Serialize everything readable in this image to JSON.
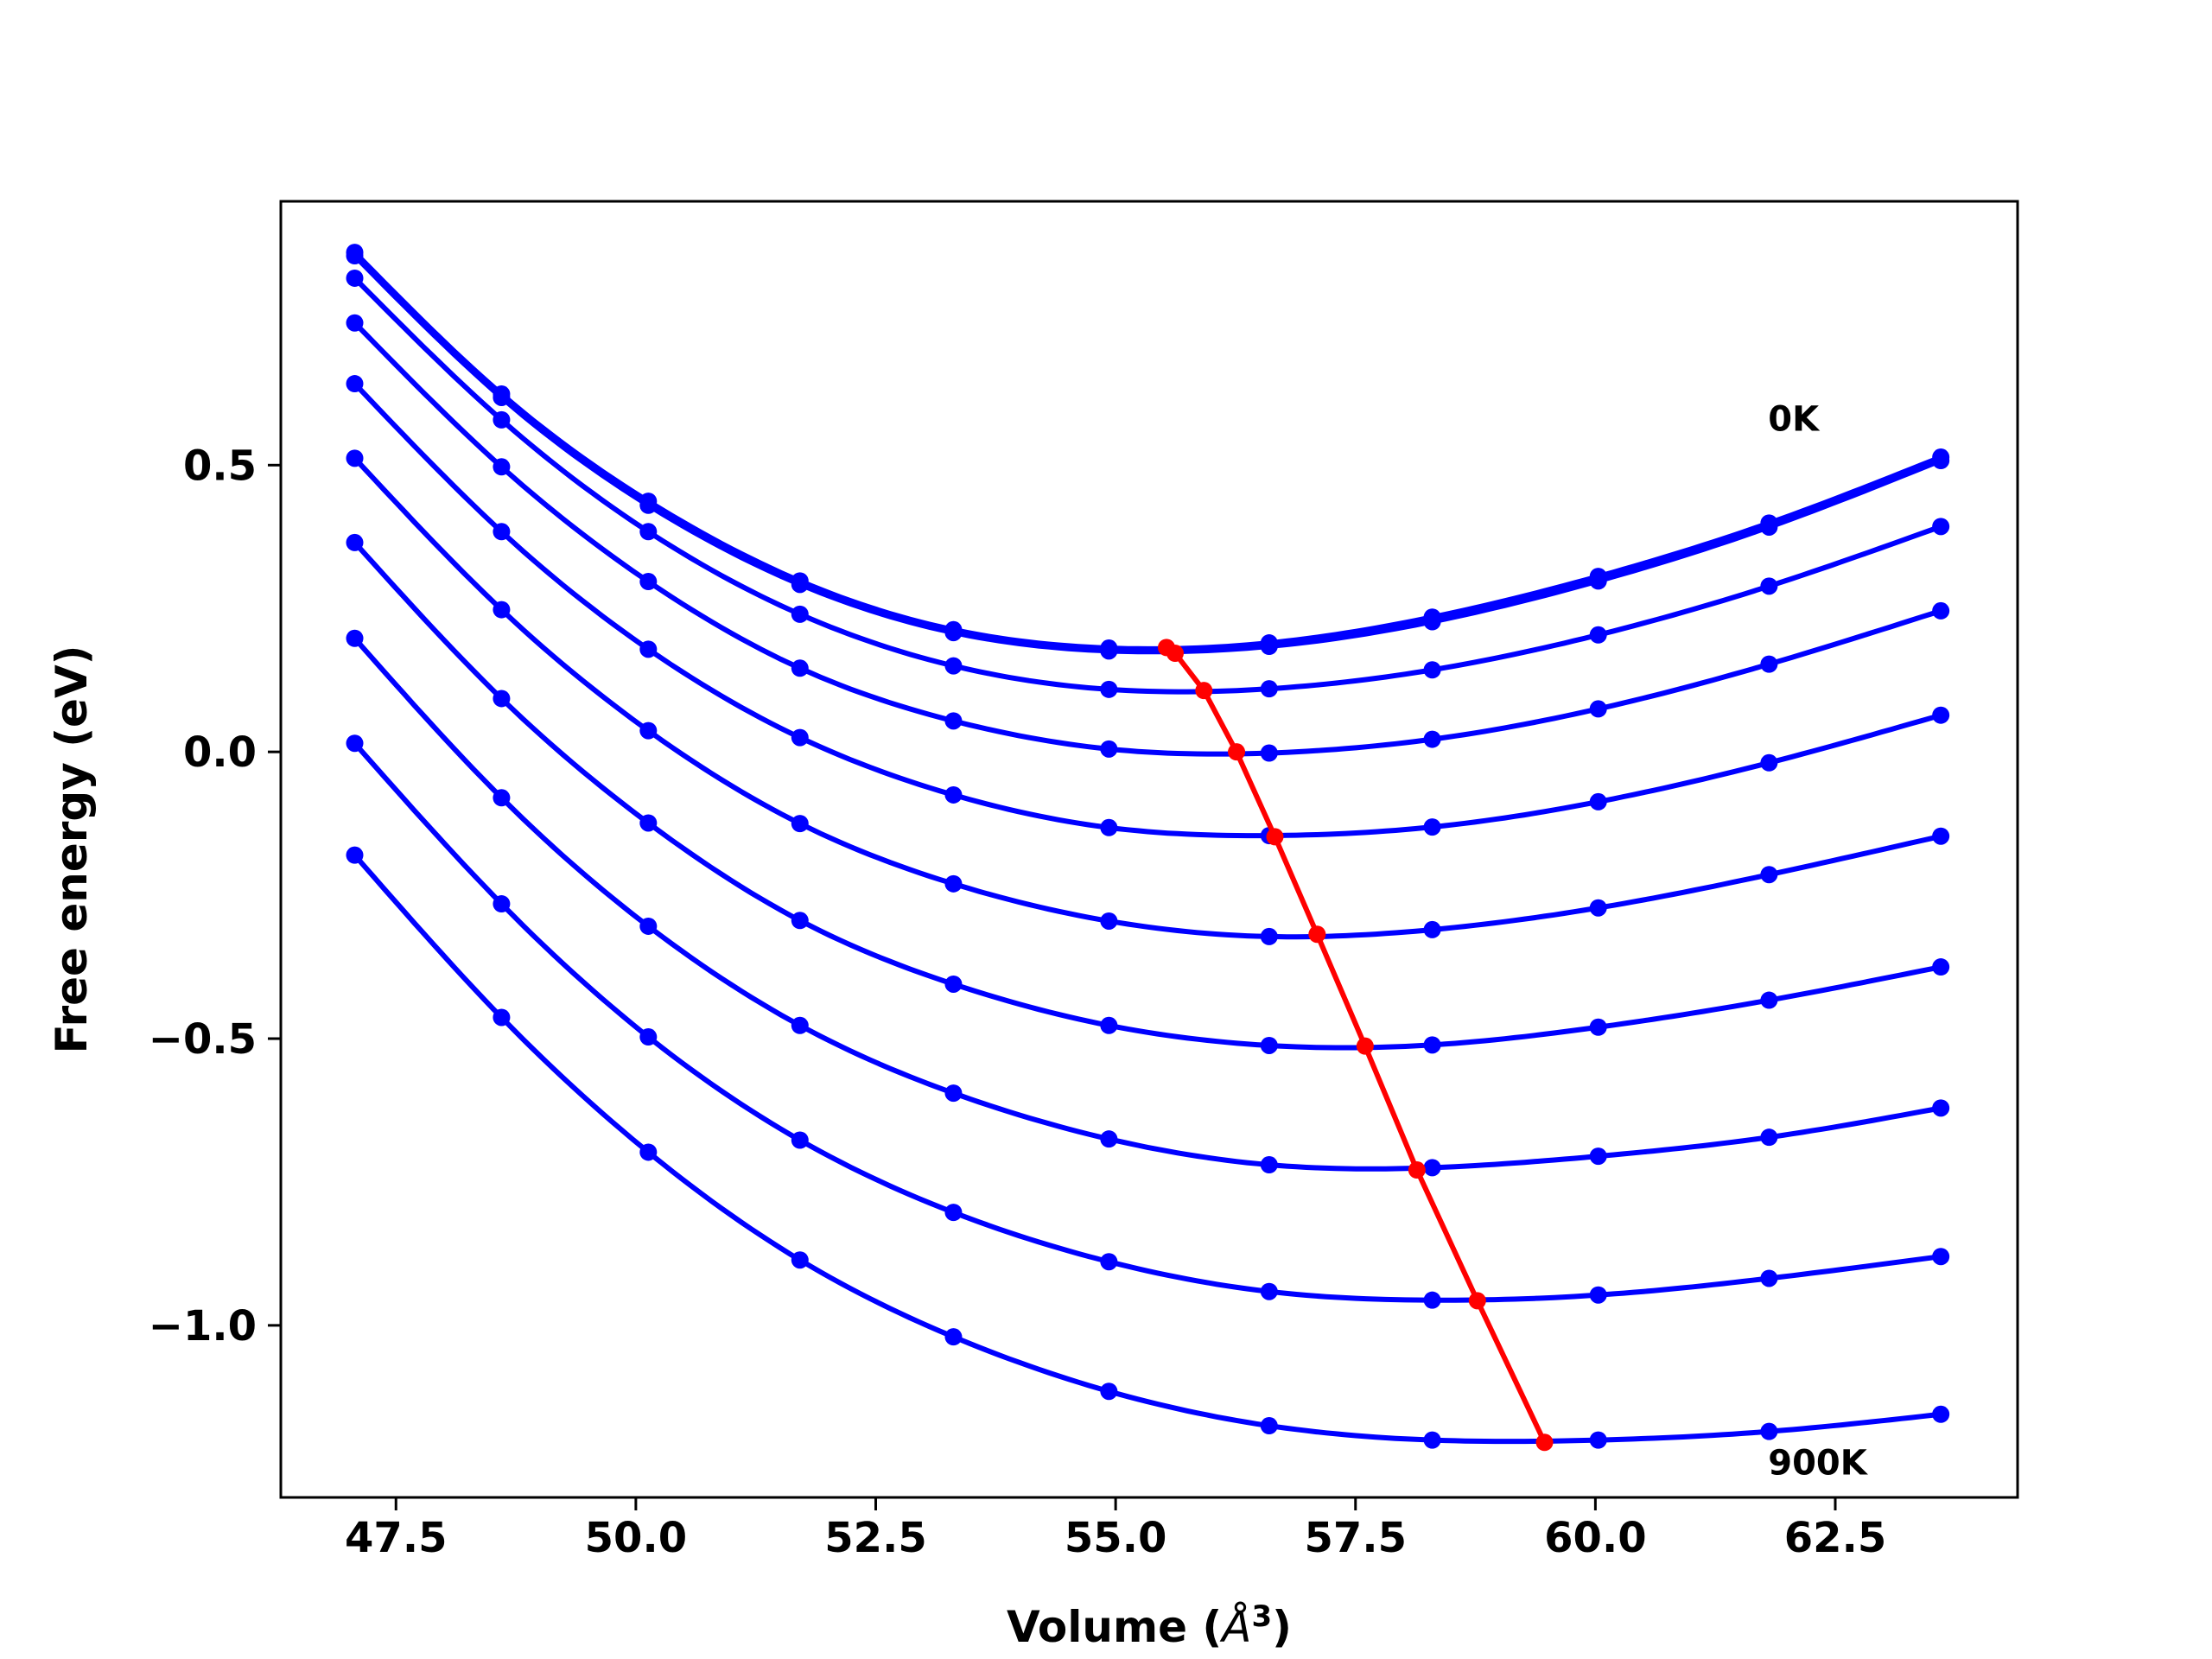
{
  "chart_data": {
    "type": "line",
    "title": "",
    "xlabel": "Volume (",
    "xlabel_symbol": "Å",
    "xlabel_exp": "3",
    "xlabel_close": ")",
    "ylabel": "Free energy (eV)",
    "xlim": [
      46.3,
      64.4
    ],
    "ylim": [
      -1.3,
      0.96
    ],
    "xticks": [
      47.5,
      50.0,
      52.5,
      55.0,
      57.5,
      60.0,
      62.5
    ],
    "xtick_labels": [
      "47.5",
      "50.0",
      "52.5",
      "55.0",
      "57.5",
      "60.0",
      "62.5"
    ],
    "yticks": [
      0.5,
      0.0,
      -0.5,
      -1.0
    ],
    "ytick_labels": [
      "0.5",
      "0.0",
      "−0.5",
      "−1.0"
    ],
    "grid": false,
    "annotations": [
      {
        "text": "0K",
        "x": 61.8,
        "y": 0.56
      },
      {
        "text": "900K",
        "x": 61.8,
        "y": -1.26
      }
    ],
    "x": [
      47.07,
      48.6,
      50.13,
      51.71,
      53.31,
      54.93,
      56.6,
      58.3,
      60.03,
      61.81,
      63.6
    ],
    "series": [
      {
        "values": [
          0.871,
          0.624,
          0.437,
          0.298,
          0.213,
          0.181,
          0.19,
          0.235,
          0.306,
          0.399,
          0.514
        ]
      },
      {
        "values": [
          0.865,
          0.618,
          0.43,
          0.292,
          0.208,
          0.176,
          0.184,
          0.227,
          0.298,
          0.392,
          0.508
        ]
      },
      {
        "values": [
          0.826,
          0.579,
          0.384,
          0.24,
          0.15,
          0.109,
          0.11,
          0.143,
          0.204,
          0.289,
          0.393
        ]
      },
      {
        "values": [
          0.748,
          0.497,
          0.297,
          0.146,
          0.054,
          0.005,
          -0.002,
          0.022,
          0.075,
          0.153,
          0.246
        ]
      },
      {
        "values": [
          0.642,
          0.384,
          0.179,
          0.025,
          -0.075,
          -0.132,
          -0.146,
          -0.131,
          -0.087,
          -0.019,
          0.064
        ]
      },
      {
        "values": [
          0.512,
          0.248,
          0.037,
          -0.125,
          -0.23,
          -0.295,
          -0.322,
          -0.31,
          -0.272,
          -0.214,
          -0.147
        ]
      },
      {
        "values": [
          0.365,
          0.093,
          -0.124,
          -0.294,
          -0.405,
          -0.477,
          -0.512,
          -0.511,
          -0.48,
          -0.433,
          -0.375
        ]
      },
      {
        "values": [
          0.198,
          -0.08,
          -0.304,
          -0.477,
          -0.595,
          -0.675,
          -0.72,
          -0.725,
          -0.705,
          -0.672,
          -0.621
        ]
      },
      {
        "values": [
          0.015,
          -0.265,
          -0.497,
          -0.677,
          -0.803,
          -0.889,
          -0.941,
          -0.956,
          -0.947,
          -0.918,
          -0.88
        ]
      },
      {
        "values": [
          -0.18,
          -0.463,
          -0.698,
          -0.886,
          -1.02,
          -1.115,
          -1.175,
          -1.2,
          -1.2,
          -1.185,
          -1.155
        ]
      }
    ],
    "minima": {
      "x": [
        55.53,
        55.62,
        55.92,
        56.26,
        56.66,
        57.1,
        57.6,
        58.14,
        58.77,
        59.47
      ],
      "y": [
        0.182,
        0.172,
        0.107,
        0.0,
        -0.148,
        -0.318,
        -0.513,
        -0.729,
        -0.957,
        -1.204
      ]
    },
    "colors": {
      "curves": "#0000ff",
      "minima": "#ff0000",
      "axes": "#000000"
    }
  }
}
